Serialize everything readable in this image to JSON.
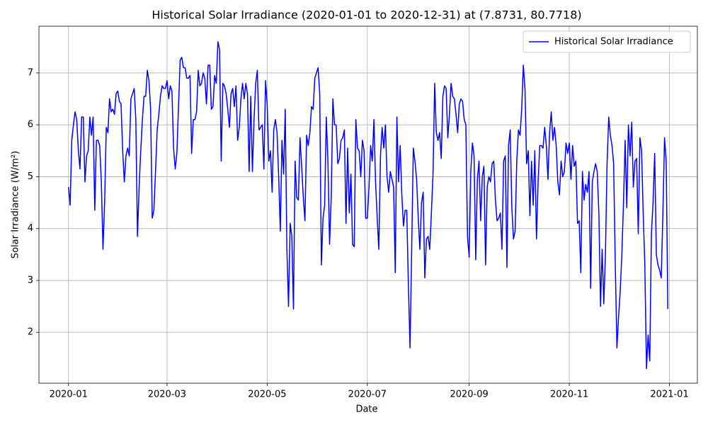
{
  "chart_data": {
    "type": "line",
    "title": "Historical Solar Irradiance (2020-01-01 to 2020-12-31) at (7.8731, 80.7718)",
    "x_label": "Date",
    "y_label": "Solar Irradiance (W/m²)",
    "xlim": [
      "2019-12-14",
      "2021-01-18"
    ],
    "xticks": [
      {
        "value": "2020-01-01",
        "label": "2020-01"
      },
      {
        "value": "2020-03-01",
        "label": "2020-03"
      },
      {
        "value": "2020-05-01",
        "label": "2020-05"
      },
      {
        "value": "2020-07-01",
        "label": "2020-07"
      },
      {
        "value": "2020-09-01",
        "label": "2020-09"
      },
      {
        "value": "2020-11-01",
        "label": "2020-11"
      },
      {
        "value": "2021-01-01",
        "label": "2021-01"
      }
    ],
    "ylim": [
      1.02,
      7.9
    ],
    "yticks": [
      2,
      3,
      4,
      5,
      6,
      7
    ],
    "grid": true,
    "legend": "upper right",
    "x": [
      "2020-01-01",
      "2020-01-02",
      "2020-01-03",
      "2020-01-04",
      "2020-01-05",
      "2020-01-06",
      "2020-01-07",
      "2020-01-08",
      "2020-01-09",
      "2020-01-10",
      "2020-01-11",
      "2020-01-12",
      "2020-01-13",
      "2020-01-14",
      "2020-01-15",
      "2020-01-16",
      "2020-01-17",
      "2020-01-18",
      "2020-01-19",
      "2020-01-20",
      "2020-01-21",
      "2020-01-22",
      "2020-01-23",
      "2020-01-24",
      "2020-01-25",
      "2020-01-26",
      "2020-01-27",
      "2020-01-28",
      "2020-01-29",
      "2020-01-30",
      "2020-01-31",
      "2020-02-01",
      "2020-02-02",
      "2020-02-03",
      "2020-02-04",
      "2020-02-05",
      "2020-02-06",
      "2020-02-07",
      "2020-02-08",
      "2020-02-09",
      "2020-02-10",
      "2020-02-11",
      "2020-02-12",
      "2020-02-13",
      "2020-02-14",
      "2020-02-15",
      "2020-02-16",
      "2020-02-17",
      "2020-02-18",
      "2020-02-19",
      "2020-02-20",
      "2020-02-21",
      "2020-02-22",
      "2020-02-23",
      "2020-02-24",
      "2020-02-25",
      "2020-02-26",
      "2020-02-27",
      "2020-02-28",
      "2020-02-29",
      "2020-03-01",
      "2020-03-02",
      "2020-03-03",
      "2020-03-04",
      "2020-03-05",
      "2020-03-06",
      "2020-03-07",
      "2020-03-08",
      "2020-03-09",
      "2020-03-10",
      "2020-03-11",
      "2020-03-12",
      "2020-03-13",
      "2020-03-14",
      "2020-03-15",
      "2020-03-16",
      "2020-03-17",
      "2020-03-18",
      "2020-03-19",
      "2020-03-20",
      "2020-03-21",
      "2020-03-22",
      "2020-03-23",
      "2020-03-24",
      "2020-03-25",
      "2020-03-26",
      "2020-03-27",
      "2020-03-28",
      "2020-03-29",
      "2020-03-30",
      "2020-03-31",
      "2020-04-01",
      "2020-04-02",
      "2020-04-03",
      "2020-04-04",
      "2020-04-05",
      "2020-04-06",
      "2020-04-07",
      "2020-04-08",
      "2020-04-09",
      "2020-04-10",
      "2020-04-11",
      "2020-04-12",
      "2020-04-13",
      "2020-04-14",
      "2020-04-15",
      "2020-04-16",
      "2020-04-17",
      "2020-04-18",
      "2020-04-19",
      "2020-04-20",
      "2020-04-21",
      "2020-04-22",
      "2020-04-23",
      "2020-04-24",
      "2020-04-25",
      "2020-04-26",
      "2020-04-27",
      "2020-04-28",
      "2020-04-29",
      "2020-04-30",
      "2020-05-01",
      "2020-05-02",
      "2020-05-03",
      "2020-05-04",
      "2020-05-05",
      "2020-05-06",
      "2020-05-07",
      "2020-05-08",
      "2020-05-09",
      "2020-05-10",
      "2020-05-11",
      "2020-05-12",
      "2020-05-13",
      "2020-05-14",
      "2020-05-15",
      "2020-05-16",
      "2020-05-17",
      "2020-05-18",
      "2020-05-19",
      "2020-05-20",
      "2020-05-21",
      "2020-05-22",
      "2020-05-23",
      "2020-05-24",
      "2020-05-25",
      "2020-05-26",
      "2020-05-27",
      "2020-05-28",
      "2020-05-29",
      "2020-05-30",
      "2020-05-31",
      "2020-06-01",
      "2020-06-02",
      "2020-06-03",
      "2020-06-04",
      "2020-06-05",
      "2020-06-06",
      "2020-06-07",
      "2020-06-08",
      "2020-06-09",
      "2020-06-10",
      "2020-06-11",
      "2020-06-12",
      "2020-06-13",
      "2020-06-14",
      "2020-06-15",
      "2020-06-16",
      "2020-06-17",
      "2020-06-18",
      "2020-06-19",
      "2020-06-20",
      "2020-06-21",
      "2020-06-22",
      "2020-06-23",
      "2020-06-24",
      "2020-06-25",
      "2020-06-26",
      "2020-06-27",
      "2020-06-28",
      "2020-06-29",
      "2020-06-30",
      "2020-07-01",
      "2020-07-02",
      "2020-07-03",
      "2020-07-04",
      "2020-07-05",
      "2020-07-06",
      "2020-07-07",
      "2020-07-08",
      "2020-07-09",
      "2020-07-10",
      "2020-07-11",
      "2020-07-12",
      "2020-07-13",
      "2020-07-14",
      "2020-07-15",
      "2020-07-16",
      "2020-07-17",
      "2020-07-18",
      "2020-07-19",
      "2020-07-20",
      "2020-07-21",
      "2020-07-22",
      "2020-07-23",
      "2020-07-24",
      "2020-07-25",
      "2020-07-26",
      "2020-07-27",
      "2020-07-28",
      "2020-07-29",
      "2020-07-30",
      "2020-07-31",
      "2020-08-01",
      "2020-08-02",
      "2020-08-03",
      "2020-08-04",
      "2020-08-05",
      "2020-08-06",
      "2020-08-07",
      "2020-08-08",
      "2020-08-09",
      "2020-08-10",
      "2020-08-11",
      "2020-08-12",
      "2020-08-13",
      "2020-08-14",
      "2020-08-15",
      "2020-08-16",
      "2020-08-17",
      "2020-08-18",
      "2020-08-19",
      "2020-08-20",
      "2020-08-21",
      "2020-08-22",
      "2020-08-23",
      "2020-08-24",
      "2020-08-25",
      "2020-08-26",
      "2020-08-27",
      "2020-08-28",
      "2020-08-29",
      "2020-08-30",
      "2020-08-31",
      "2020-09-01",
      "2020-09-02",
      "2020-09-03",
      "2020-09-04",
      "2020-09-05",
      "2020-09-06",
      "2020-09-07",
      "2020-09-08",
      "2020-09-09",
      "2020-09-10",
      "2020-09-11",
      "2020-09-12",
      "2020-09-13",
      "2020-09-14",
      "2020-09-15",
      "2020-09-16",
      "2020-09-17",
      "2020-09-18",
      "2020-09-19",
      "2020-09-20",
      "2020-09-21",
      "2020-09-22",
      "2020-09-23",
      "2020-09-24",
      "2020-09-25",
      "2020-09-26",
      "2020-09-27",
      "2020-09-28",
      "2020-09-29",
      "2020-09-30",
      "2020-10-01",
      "2020-10-02",
      "2020-10-03",
      "2020-10-04",
      "2020-10-05",
      "2020-10-06",
      "2020-10-07",
      "2020-10-08",
      "2020-10-09",
      "2020-10-10",
      "2020-10-11",
      "2020-10-12",
      "2020-10-13",
      "2020-10-14",
      "2020-10-15",
      "2020-10-16",
      "2020-10-17",
      "2020-10-18",
      "2020-10-19",
      "2020-10-20",
      "2020-10-21",
      "2020-10-22",
      "2020-10-23",
      "2020-10-24",
      "2020-10-25",
      "2020-10-26",
      "2020-10-27",
      "2020-10-28",
      "2020-10-29",
      "2020-10-30",
      "2020-10-31",
      "2020-11-01",
      "2020-11-02",
      "2020-11-03",
      "2020-11-04",
      "2020-11-05",
      "2020-11-06",
      "2020-11-07",
      "2020-11-08",
      "2020-11-09",
      "2020-11-10",
      "2020-11-11",
      "2020-11-12",
      "2020-11-13",
      "2020-11-14",
      "2020-11-15",
      "2020-11-16",
      "2020-11-17",
      "2020-11-18",
      "2020-11-19",
      "2020-11-20",
      "2020-11-21",
      "2020-11-22",
      "2020-11-23",
      "2020-11-24",
      "2020-11-25",
      "2020-11-26",
      "2020-11-27",
      "2020-11-28",
      "2020-11-29",
      "2020-11-30",
      "2020-12-01",
      "2020-12-02",
      "2020-12-03",
      "2020-12-04",
      "2020-12-05",
      "2020-12-06",
      "2020-12-07",
      "2020-12-08",
      "2020-12-09",
      "2020-12-10",
      "2020-12-11",
      "2020-12-12",
      "2020-12-13",
      "2020-12-14",
      "2020-12-15",
      "2020-12-16",
      "2020-12-17",
      "2020-12-18",
      "2020-12-19",
      "2020-12-20",
      "2020-12-21",
      "2020-12-22",
      "2020-12-23",
      "2020-12-24",
      "2020-12-25",
      "2020-12-26",
      "2020-12-27",
      "2020-12-28",
      "2020-12-29",
      "2020-12-30",
      "2020-12-31"
    ],
    "series": [
      {
        "name": "Historical Solar Irradiance",
        "color": "#0000ff",
        "values": [
          4.8,
          4.45,
          5.7,
          6.0,
          6.25,
          6.1,
          5.5,
          5.15,
          6.15,
          6.15,
          4.9,
          5.4,
          5.5,
          6.15,
          5.8,
          6.15,
          4.35,
          5.7,
          5.7,
          5.6,
          4.9,
          3.6,
          4.5,
          5.95,
          5.85,
          6.5,
          6.25,
          6.3,
          6.2,
          6.6,
          6.65,
          6.45,
          6.4,
          5.5,
          4.9,
          5.4,
          5.55,
          5.4,
          6.5,
          6.6,
          6.7,
          6.1,
          3.85,
          4.8,
          5.5,
          6.1,
          6.55,
          6.55,
          7.05,
          6.85,
          6.3,
          4.2,
          4.35,
          5.1,
          5.9,
          6.2,
          6.55,
          6.75,
          6.7,
          6.7,
          6.85,
          6.5,
          6.75,
          6.65,
          5.55,
          5.15,
          5.45,
          6.35,
          7.25,
          7.3,
          7.1,
          7.1,
          6.9,
          6.9,
          6.95,
          5.45,
          6.1,
          6.1,
          6.25,
          7.05,
          6.75,
          6.8,
          7.0,
          6.9,
          6.4,
          7.15,
          7.15,
          6.3,
          6.35,
          6.95,
          6.8,
          7.6,
          7.45,
          5.3,
          6.8,
          6.75,
          6.6,
          6.3,
          5.95,
          6.6,
          6.7,
          6.35,
          6.75,
          5.7,
          5.95,
          6.5,
          6.8,
          6.5,
          6.8,
          6.6,
          5.1,
          6.55,
          5.1,
          6.1,
          6.8,
          7.05,
          5.9,
          5.95,
          6.0,
          5.15,
          6.85,
          6.4,
          5.3,
          5.5,
          4.7,
          5.9,
          6.1,
          5.85,
          5.0,
          3.95,
          5.7,
          5.05,
          6.3,
          3.6,
          2.5,
          4.1,
          3.85,
          2.45,
          5.3,
          4.6,
          4.55,
          5.75,
          5.2,
          4.6,
          4.15,
          5.8,
          5.6,
          5.85,
          6.35,
          6.3,
          6.9,
          7.0,
          7.1,
          6.6,
          3.3,
          4.2,
          4.45,
          6.15,
          5.3,
          3.7,
          4.6,
          6.5,
          6.0,
          6.0,
          5.25,
          5.35,
          5.7,
          5.75,
          5.9,
          4.1,
          5.55,
          4.3,
          5.05,
          3.7,
          3.65,
          6.1,
          5.55,
          5.5,
          5.0,
          5.7,
          5.5,
          4.2,
          4.2,
          4.8,
          5.6,
          5.3,
          6.1,
          4.9,
          4.2,
          3.6,
          5.4,
          5.95,
          5.55,
          6.0,
          5.0,
          4.7,
          5.1,
          4.95,
          4.8,
          3.15,
          6.15,
          4.9,
          5.6,
          4.65,
          4.05,
          4.35,
          4.35,
          2.9,
          1.7,
          3.6,
          5.55,
          5.3,
          4.95,
          4.2,
          3.6,
          4.5,
          4.7,
          3.05,
          3.8,
          3.85,
          3.6,
          4.3,
          5.05,
          6.8,
          5.85,
          5.7,
          5.85,
          5.35,
          6.55,
          6.75,
          6.7,
          5.75,
          6.2,
          6.8,
          6.55,
          6.5,
          6.2,
          5.85,
          6.4,
          6.5,
          6.45,
          6.1,
          6.0,
          3.85,
          3.45,
          5.1,
          5.65,
          5.4,
          3.4,
          4.95,
          5.3,
          4.15,
          5.0,
          5.2,
          3.3,
          4.8,
          5.0,
          4.9,
          5.25,
          5.3,
          4.55,
          4.15,
          4.2,
          4.3,
          3.6,
          5.3,
          5.4,
          3.25,
          5.6,
          5.9,
          4.4,
          3.8,
          3.95,
          5.3,
          5.9,
          5.8,
          6.3,
          7.15,
          6.7,
          5.25,
          5.5,
          4.25,
          5.3,
          4.45,
          5.5,
          3.8,
          4.9,
          5.6,
          5.6,
          5.55,
          5.95,
          5.6,
          4.95,
          5.85,
          6.25,
          5.7,
          5.95,
          5.6,
          4.9,
          4.65,
          5.3,
          5.0,
          5.1,
          5.65,
          5.45,
          5.65,
          4.95,
          5.6,
          5.2,
          5.3,
          4.1,
          4.15,
          3.15,
          5.1,
          4.55,
          4.85,
          4.7,
          5.1,
          2.85,
          4.9,
          5.1,
          5.25,
          5.1,
          4.3,
          2.5,
          3.6,
          2.55,
          3.5,
          5.25,
          6.15,
          5.8,
          5.6,
          5.25,
          3.3,
          1.7,
          2.3,
          2.8,
          3.5,
          4.5,
          5.7,
          4.4,
          6.0,
          5.4,
          6.05,
          4.8,
          5.3,
          5.35,
          3.9,
          5.75,
          5.5,
          4.3,
          3.3,
          1.3,
          1.95,
          1.45,
          3.9,
          4.5,
          5.45,
          3.5,
          3.3,
          3.2,
          3.05,
          4.3,
          5.75,
          5.3,
          2.45
        ]
      }
    ]
  }
}
